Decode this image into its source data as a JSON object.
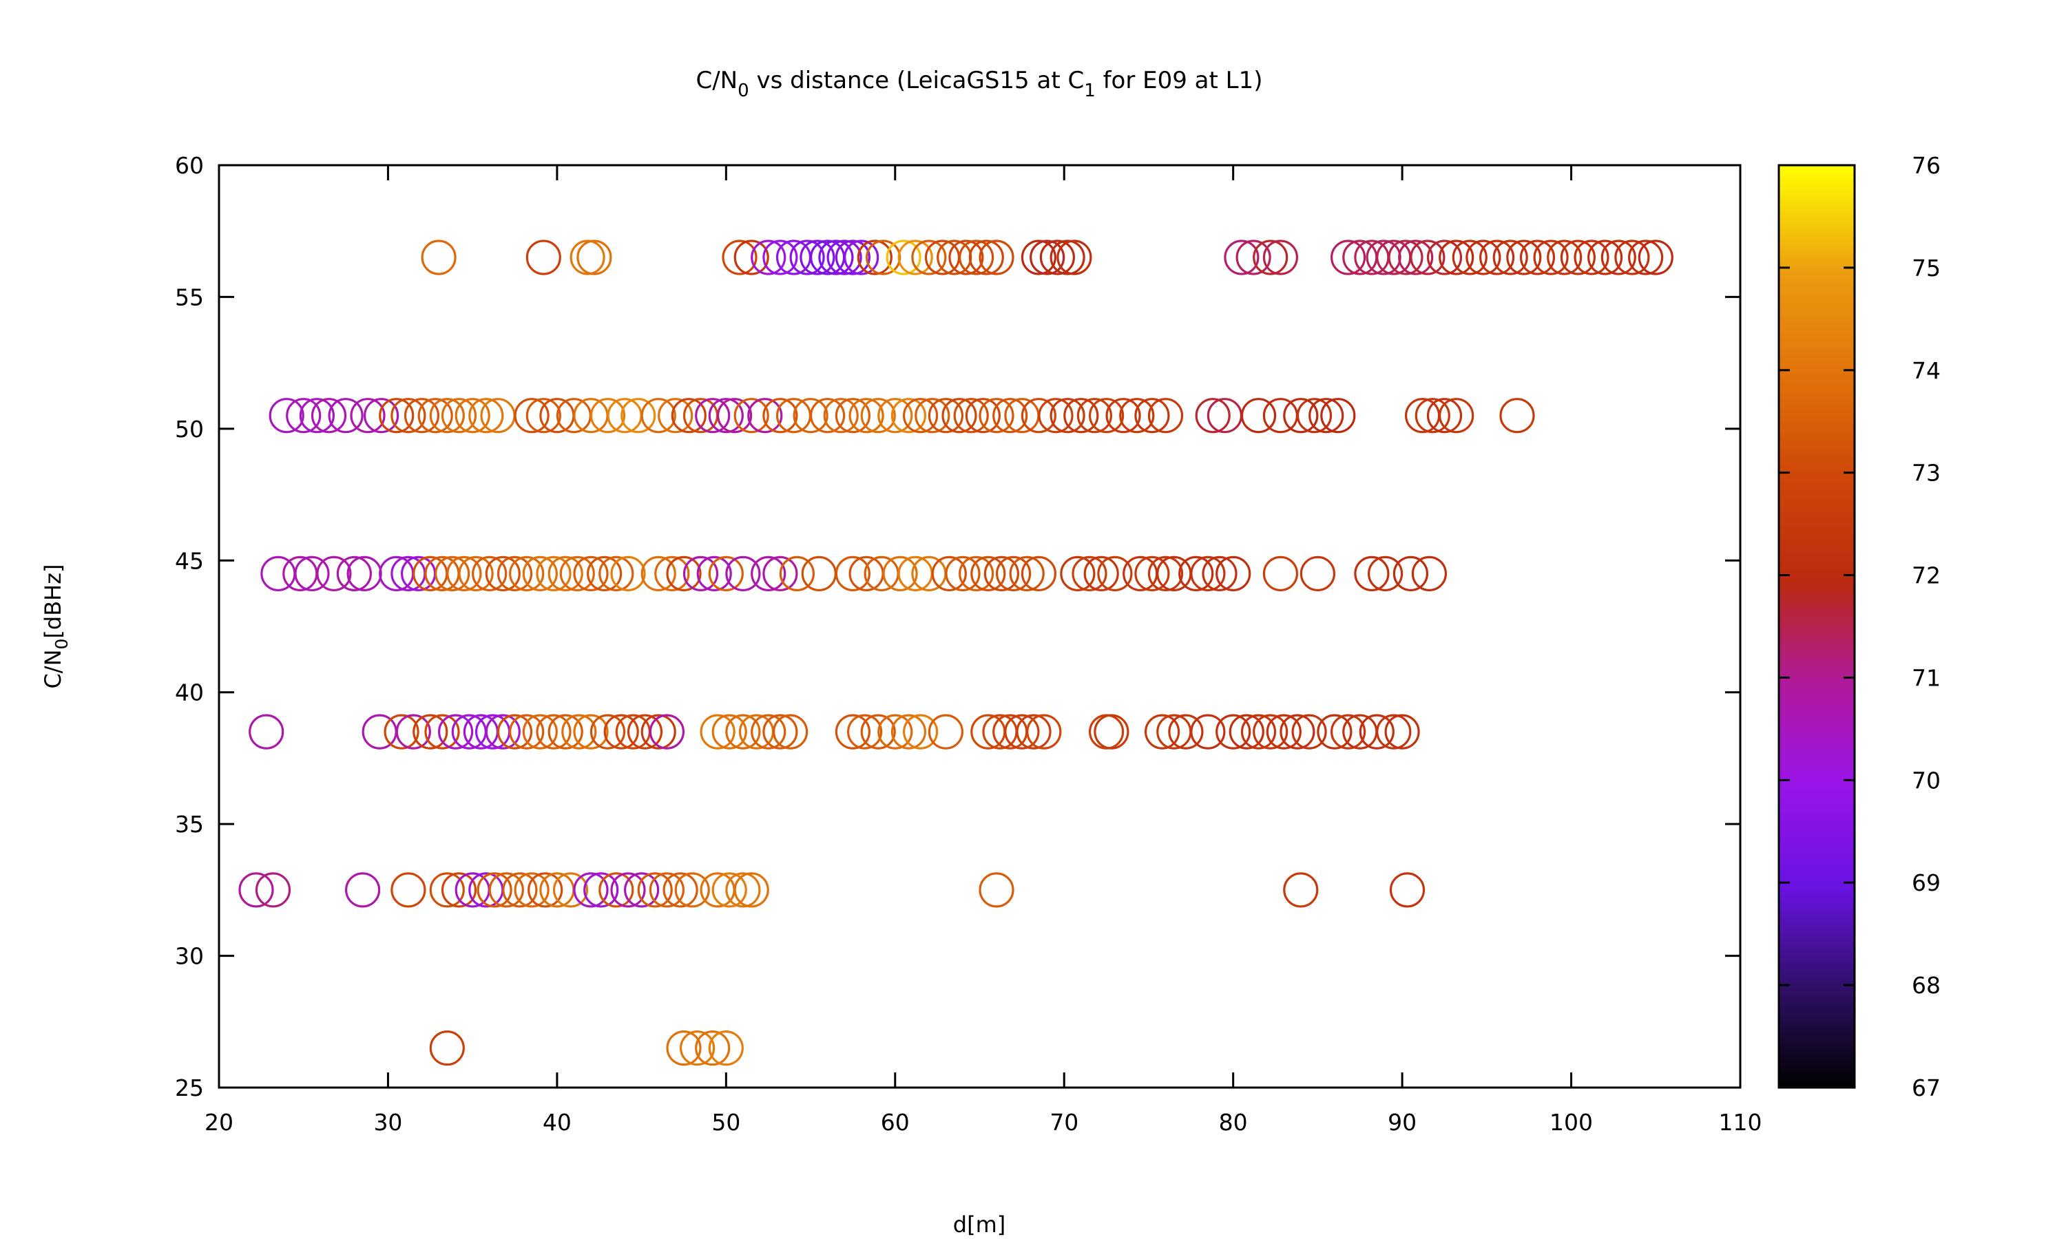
{
  "chart_data": {
    "type": "scatter",
    "title": {
      "main": "C/N",
      "sub0": "0",
      "middle": " vs distance (LeicaGS15 at C",
      "sub1": "1",
      "end": " for E09 at L1)"
    },
    "xlabel": "d[m]",
    "ylabel": {
      "main": "C/N",
      "sub": "0",
      "end": "[dBHz]"
    },
    "xlim": [
      20,
      110
    ],
    "ylim": [
      25,
      60
    ],
    "xticks": [
      "20",
      "30",
      "40",
      "50",
      "60",
      "70",
      "80",
      "90",
      "100",
      "110"
    ],
    "yticks": [
      "25",
      "30",
      "35",
      "40",
      "45",
      "50",
      "55",
      "60"
    ],
    "colorbar": {
      "range": [
        67,
        76
      ],
      "ticks": [
        "67",
        "68",
        "69",
        "70",
        "71",
        "72",
        "73",
        "74",
        "75",
        "76"
      ],
      "palette": "black-purple-red-orange-yellow"
    },
    "marker": "open-circle",
    "series": [
      {
        "y": 56.5,
        "points": [
          [
            33,
            73.8
          ],
          [
            39.2,
            72.8
          ],
          [
            41.8,
            74.2
          ],
          [
            42.2,
            74.0
          ],
          [
            50.8,
            73.0
          ],
          [
            51.5,
            72.5
          ],
          [
            52.5,
            70.3
          ],
          [
            53.2,
            70.0
          ],
          [
            54,
            69.8
          ],
          [
            54.8,
            69.7
          ],
          [
            55.4,
            69.5
          ],
          [
            56,
            69.4
          ],
          [
            56.5,
            69.5
          ],
          [
            57,
            69.6
          ],
          [
            57.5,
            69.6
          ],
          [
            58,
            69.8
          ],
          [
            58.8,
            72.6
          ],
          [
            59.3,
            73.6
          ],
          [
            60.5,
            75.4
          ],
          [
            61.2,
            74.8
          ],
          [
            62,
            73.6
          ],
          [
            62.8,
            73.0
          ],
          [
            63.5,
            73.2
          ],
          [
            64.2,
            73.0
          ],
          [
            64.8,
            73.2
          ],
          [
            65.4,
            73.0
          ],
          [
            66,
            73.1
          ],
          [
            68.5,
            72.0
          ],
          [
            69,
            71.9
          ],
          [
            69.6,
            72.0
          ],
          [
            70.2,
            72.1
          ],
          [
            70.6,
            72.2
          ],
          [
            80.5,
            71.3
          ],
          [
            81.2,
            71.4
          ],
          [
            82.2,
            71.8
          ],
          [
            82.8,
            71.6
          ],
          [
            86.8,
            71.4
          ],
          [
            87.5,
            71.5
          ],
          [
            88.2,
            71.5
          ],
          [
            88.9,
            71.4
          ],
          [
            89.5,
            71.5
          ],
          [
            90.2,
            71.6
          ],
          [
            90.8,
            71.5
          ],
          [
            91.5,
            71.7
          ],
          [
            92.5,
            71.8
          ],
          [
            93.2,
            72.0
          ],
          [
            94,
            72.2
          ],
          [
            94.8,
            72.2
          ],
          [
            95.6,
            72.3
          ],
          [
            96.4,
            72.3
          ],
          [
            97.2,
            72.2
          ],
          [
            98,
            72.3
          ],
          [
            98.8,
            72.4
          ],
          [
            99.6,
            72.4
          ],
          [
            100.4,
            72.3
          ],
          [
            101.2,
            72.3
          ],
          [
            102,
            72.2
          ],
          [
            102.8,
            72.2
          ],
          [
            103.6,
            72.3
          ],
          [
            104.4,
            72.2
          ],
          [
            105,
            72.0
          ]
        ]
      },
      {
        "y": 50.5,
        "points": [
          [
            24,
            70.5
          ],
          [
            25,
            70.6
          ],
          [
            25.8,
            70.5
          ],
          [
            26.5,
            70.7
          ],
          [
            27.5,
            70.6
          ],
          [
            28.8,
            70.8
          ],
          [
            29.6,
            70.7
          ],
          [
            30.5,
            73.0
          ],
          [
            31.2,
            73.2
          ],
          [
            32,
            73.3
          ],
          [
            32.8,
            73.5
          ],
          [
            33.5,
            73.8
          ],
          [
            34.2,
            73.9
          ],
          [
            35,
            74.0
          ],
          [
            35.8,
            74.1
          ],
          [
            36.5,
            74.2
          ],
          [
            38.5,
            73.2
          ],
          [
            39.2,
            73.4
          ],
          [
            40,
            73.2
          ],
          [
            41,
            73.5
          ],
          [
            42,
            74.0
          ],
          [
            43,
            74.3
          ],
          [
            44,
            74.5
          ],
          [
            44.8,
            74.6
          ],
          [
            46,
            73.8
          ],
          [
            47,
            74.0
          ],
          [
            47.8,
            72.9
          ],
          [
            48.5,
            73.2
          ],
          [
            49.2,
            70.8
          ],
          [
            50,
            70.7
          ],
          [
            50.5,
            71.0
          ],
          [
            51.5,
            73.5
          ],
          [
            52.3,
            70.9
          ],
          [
            53.2,
            73.3
          ],
          [
            54,
            73.6
          ],
          [
            55,
            73.7
          ],
          [
            56,
            73.6
          ],
          [
            56.8,
            73.8
          ],
          [
            57.5,
            73.5
          ],
          [
            58.3,
            73.9
          ],
          [
            59,
            74.0
          ],
          [
            60,
            74.2
          ],
          [
            60.8,
            74.5
          ],
          [
            61.5,
            73.4
          ],
          [
            62.2,
            73.6
          ],
          [
            63,
            73.2
          ],
          [
            63.8,
            73.0
          ],
          [
            64.5,
            73.2
          ],
          [
            65.2,
            73.0
          ],
          [
            66,
            73.4
          ],
          [
            66.8,
            73.3
          ],
          [
            67.5,
            73.5
          ],
          [
            68.5,
            73.0
          ],
          [
            69.5,
            72.8
          ],
          [
            70.2,
            72.6
          ],
          [
            71,
            72.5
          ],
          [
            71.8,
            72.7
          ],
          [
            72.5,
            72.8
          ],
          [
            73.5,
            72.5
          ],
          [
            74.3,
            72.6
          ],
          [
            75.2,
            72.5
          ],
          [
            76,
            72.6
          ],
          [
            78.8,
            71.8
          ],
          [
            79.5,
            71.6
          ],
          [
            81.5,
            72.0
          ],
          [
            82.8,
            72.2
          ],
          [
            84,
            72.0
          ],
          [
            84.8,
            72.3
          ],
          [
            85.5,
            72.1
          ],
          [
            86.2,
            72.0
          ],
          [
            91.2,
            72.4
          ],
          [
            91.8,
            72.5
          ],
          [
            92.5,
            72.3
          ],
          [
            93.2,
            72.5
          ],
          [
            96.8,
            72.6
          ]
        ]
      },
      {
        "y": 44.5,
        "points": [
          [
            23.5,
            70.6
          ],
          [
            24.8,
            70.8
          ],
          [
            25.5,
            70.7
          ],
          [
            26.8,
            70.9
          ],
          [
            28,
            70.8
          ],
          [
            28.6,
            70.7
          ],
          [
            30.5,
            70.5
          ],
          [
            31.2,
            70.3
          ],
          [
            31.8,
            70.2
          ],
          [
            32.5,
            73.3
          ],
          [
            33.2,
            73.5
          ],
          [
            33.8,
            73.7
          ],
          [
            34.5,
            73.8
          ],
          [
            35.2,
            73.9
          ],
          [
            36,
            73.5
          ],
          [
            36.8,
            73.2
          ],
          [
            37.5,
            73.4
          ],
          [
            38.2,
            73.8
          ],
          [
            39,
            74.0
          ],
          [
            39.8,
            74.2
          ],
          [
            40.5,
            74.0
          ],
          [
            41.2,
            73.8
          ],
          [
            42,
            73.5
          ],
          [
            42.8,
            73.3
          ],
          [
            43.5,
            73.6
          ],
          [
            44.2,
            74.3
          ],
          [
            46,
            74.0
          ],
          [
            46.8,
            73.8
          ],
          [
            47.5,
            72.9
          ],
          [
            48.5,
            70.8
          ],
          [
            49.3,
            70.6
          ],
          [
            50,
            73.6
          ],
          [
            51,
            70.7
          ],
          [
            52.5,
            70.8
          ],
          [
            53.2,
            70.9
          ],
          [
            54.2,
            73.5
          ],
          [
            55.5,
            73.2
          ],
          [
            57.5,
            73.4
          ],
          [
            58.3,
            73.3
          ],
          [
            59.2,
            73.6
          ],
          [
            60.3,
            74.0
          ],
          [
            61.2,
            74.3
          ],
          [
            62,
            74.2
          ],
          [
            63.2,
            73.2
          ],
          [
            64,
            73.4
          ],
          [
            64.8,
            73.6
          ],
          [
            65.5,
            73.2
          ],
          [
            66.3,
            73.0
          ],
          [
            67,
            73.2
          ],
          [
            67.8,
            73.3
          ],
          [
            68.5,
            73.1
          ],
          [
            70.8,
            72.6
          ],
          [
            71.5,
            72.8
          ],
          [
            72.2,
            72.5
          ],
          [
            73,
            72.7
          ],
          [
            74.5,
            72.4
          ],
          [
            75.2,
            72.6
          ],
          [
            76,
            72.5
          ],
          [
            76.5,
            72.3
          ],
          [
            77.8,
            72.2
          ],
          [
            78.5,
            72.4
          ],
          [
            79.2,
            72.3
          ],
          [
            80,
            72.2
          ],
          [
            82.8,
            72.8
          ],
          [
            85,
            72.5
          ],
          [
            88.2,
            72.2
          ],
          [
            89,
            72.3
          ],
          [
            90.5,
            72.1
          ],
          [
            91.6,
            72.2
          ]
        ]
      },
      {
        "y": 38.5,
        "points": [
          [
            22.8,
            70.8
          ],
          [
            29.5,
            70.7
          ],
          [
            30.8,
            73.0
          ],
          [
            31.5,
            70.9
          ],
          [
            32.5,
            72.8
          ],
          [
            33.2,
            73.0
          ],
          [
            34,
            70.5
          ],
          [
            34.8,
            70.3
          ],
          [
            35.5,
            70.2
          ],
          [
            36.2,
            70.0
          ],
          [
            36.8,
            70.4
          ],
          [
            37.5,
            73.2
          ],
          [
            38.2,
            73.5
          ],
          [
            39,
            73.8
          ],
          [
            39.8,
            73.6
          ],
          [
            40.5,
            73.4
          ],
          [
            41.3,
            73.9
          ],
          [
            42,
            74.0
          ],
          [
            43,
            73.2
          ],
          [
            43.8,
            72.9
          ],
          [
            44.5,
            73.0
          ],
          [
            45.2,
            72.8
          ],
          [
            46,
            72.6
          ],
          [
            46.5,
            70.9
          ],
          [
            49.5,
            74.2
          ],
          [
            50.2,
            74.0
          ],
          [
            51,
            73.8
          ],
          [
            51.8,
            74.0
          ],
          [
            52.5,
            73.6
          ],
          [
            53.2,
            73.4
          ],
          [
            53.8,
            73.5
          ],
          [
            57.5,
            73.3
          ],
          [
            58.2,
            73.5
          ],
          [
            59,
            73.4
          ],
          [
            60,
            73.8
          ],
          [
            60.8,
            74.0
          ],
          [
            61.5,
            74.3
          ],
          [
            63,
            73.5
          ],
          [
            65.5,
            73.1
          ],
          [
            66.2,
            73.0
          ],
          [
            66.8,
            72.9
          ],
          [
            67.5,
            72.8
          ],
          [
            68.2,
            72.8
          ],
          [
            68.8,
            73.0
          ],
          [
            72.5,
            72.8
          ],
          [
            72.8,
            72.6
          ],
          [
            75.8,
            72.5
          ],
          [
            76.5,
            72.6
          ],
          [
            77.2,
            72.4
          ],
          [
            78.5,
            72.3
          ],
          [
            80,
            72.3
          ],
          [
            80.8,
            72.2
          ],
          [
            81.5,
            72.4
          ],
          [
            82.2,
            72.5
          ],
          [
            83,
            72.3
          ],
          [
            83.8,
            72.2
          ],
          [
            84.5,
            72.4
          ],
          [
            86,
            72.2
          ],
          [
            86.8,
            72.5
          ],
          [
            87.5,
            72.3
          ],
          [
            88.5,
            72.2
          ],
          [
            89.5,
            72.4
          ],
          [
            90,
            72.3
          ]
        ]
      },
      {
        "y": 32.5,
        "points": [
          [
            22.2,
            71.0
          ],
          [
            23.2,
            71.2
          ],
          [
            28.5,
            70.8
          ],
          [
            31.2,
            73.0
          ],
          [
            33.5,
            73.2
          ],
          [
            34.2,
            73.0
          ],
          [
            35,
            70.4
          ],
          [
            35.8,
            70.2
          ],
          [
            36.3,
            73.4
          ],
          [
            37,
            73.6
          ],
          [
            37.8,
            73.5
          ],
          [
            38.5,
            73.8
          ],
          [
            39.3,
            73.2
          ],
          [
            40,
            74.0
          ],
          [
            40.8,
            74.2
          ],
          [
            42,
            70.5
          ],
          [
            42.6,
            70.3
          ],
          [
            43.5,
            73.3
          ],
          [
            44.2,
            70.8
          ],
          [
            45,
            70.6
          ],
          [
            45.8,
            73.4
          ],
          [
            46.5,
            73.6
          ],
          [
            47.3,
            73.5
          ],
          [
            48,
            73.8
          ],
          [
            49.5,
            74.0
          ],
          [
            50.2,
            74.3
          ],
          [
            51,
            74.2
          ],
          [
            51.5,
            74.0
          ],
          [
            66,
            73.5
          ],
          [
            84,
            72.6
          ],
          [
            90.3,
            72.4
          ]
        ]
      },
      {
        "y": 26.5,
        "points": [
          [
            33.5,
            72.8
          ],
          [
            47.5,
            74.0
          ],
          [
            48.3,
            74.2
          ],
          [
            49.2,
            74.0
          ],
          [
            50,
            74.3
          ]
        ]
      }
    ]
  }
}
